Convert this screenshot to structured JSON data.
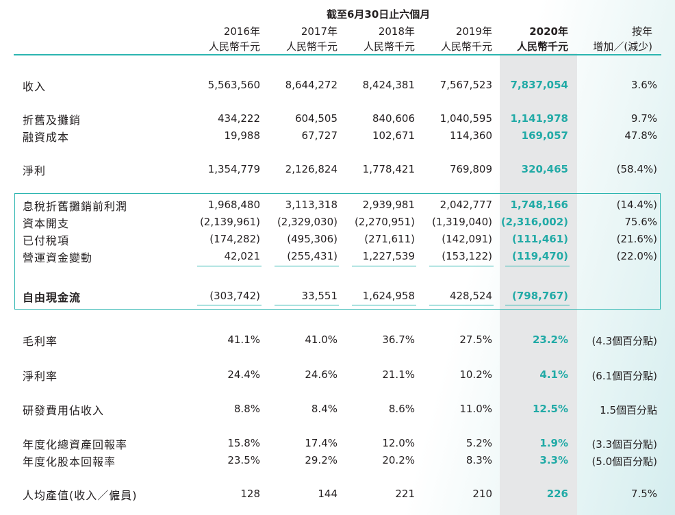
{
  "header": {
    "period": "截至6月30日止六個月",
    "columns": [
      {
        "year": "2016年",
        "unit": "人民幣千元"
      },
      {
        "year": "2017年",
        "unit": "人民幣千元"
      },
      {
        "year": "2018年",
        "unit": "人民幣千元"
      },
      {
        "year": "2019年",
        "unit": "人民幣千元"
      },
      {
        "year": "2020年",
        "unit": "人民幣千元"
      },
      {
        "year": "按年",
        "unit": "增加／(減少)"
      }
    ]
  },
  "rows": [
    {
      "label": "收入",
      "values": [
        "5,563,560",
        "8,644,272",
        "8,424,381",
        "7,567,523",
        "7,837,054",
        "3.6%"
      ]
    },
    {
      "label": "折舊及攤銷",
      "values": [
        "434,222",
        "604,505",
        "840,606",
        "1,040,595",
        "1,141,978",
        "9.7%"
      ]
    },
    {
      "label": "融資成本",
      "values": [
        "19,988",
        "67,727",
        "102,671",
        "114,360",
        "169,057",
        "47.8%"
      ]
    },
    {
      "label": "淨利",
      "values": [
        "1,354,779",
        "2,126,824",
        "1,778,421",
        "769,809",
        "320,465",
        "(58.4%)"
      ]
    },
    {
      "label": "息稅折舊攤銷前利潤",
      "values": [
        "1,968,480",
        "3,113,318",
        "2,939,981",
        "2,042,777",
        "1,748,166",
        "(14.4%)"
      ]
    },
    {
      "label": "資本開支",
      "values": [
        "(2,139,961)",
        "(2,329,030)",
        "(2,270,951)",
        "(1,319,040)",
        "(2,316,002)",
        "75.6%"
      ]
    },
    {
      "label": "已付稅項",
      "values": [
        "(174,282)",
        "(495,306)",
        "(271,611)",
        "(142,091)",
        "(111,461)",
        "(21.6%)"
      ]
    },
    {
      "label": "營運資金變動",
      "values": [
        "42,021",
        "(255,431)",
        "1,227,539",
        "(153,122)",
        "(119,470)",
        "(22.0%)"
      ]
    },
    {
      "label": "自由現金流",
      "values": [
        "(303,742)",
        "33,551",
        "1,624,958",
        "428,524",
        "(798,767)",
        ""
      ]
    },
    {
      "label": "毛利率",
      "values": [
        "41.1%",
        "41.0%",
        "36.7%",
        "27.5%",
        "23.2%",
        "(4.3個百分點)"
      ]
    },
    {
      "label": "淨利率",
      "values": [
        "24.4%",
        "24.6%",
        "21.1%",
        "10.2%",
        "4.1%",
        "(6.1個百分點)"
      ]
    },
    {
      "label": "研發費用佔收入",
      "values": [
        "8.8%",
        "8.4%",
        "8.6%",
        "11.0%",
        "12.5%",
        "1.5個百分點"
      ]
    },
    {
      "label": "年度化總資產回報率",
      "values": [
        "15.8%",
        "17.4%",
        "12.0%",
        "5.2%",
        "1.9%",
        "(3.3個百分點)"
      ]
    },
    {
      "label": "年度化股本回報率",
      "values": [
        "23.5%",
        "29.2%",
        "20.2%",
        "8.3%",
        "3.3%",
        "(5.0個百分點)"
      ]
    },
    {
      "label": "人均產值(收入／僱員)",
      "values": [
        "128",
        "144",
        "221",
        "210",
        "226",
        "7.5%"
      ]
    }
  ],
  "colors": {
    "accent": "#21aaa6",
    "rule": "#2bb5b0",
    "highlight_column": "#e6e7e8",
    "text": "#231f20"
  }
}
